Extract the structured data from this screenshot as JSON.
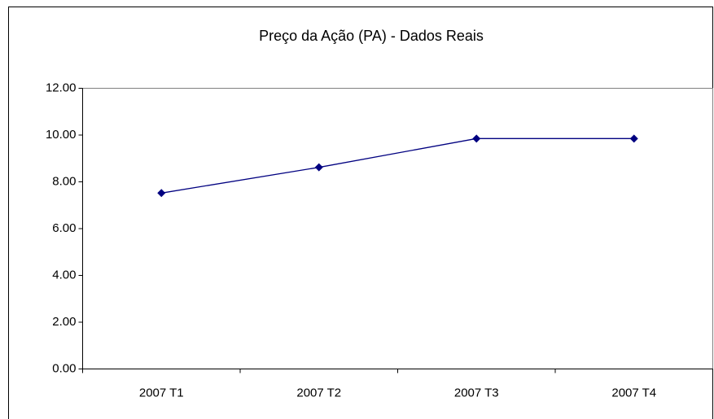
{
  "chart_data": {
    "type": "line",
    "title": "Preço da Ação (PA) - Dados Reais",
    "categories": [
      "2007 T1",
      "2007 T2",
      "2007 T3",
      "2007 T4"
    ],
    "series": [
      {
        "color": "#000080",
        "values": [
          7.52,
          8.62,
          9.85,
          9.85
        ]
      }
    ],
    "ylim": [
      0,
      12
    ],
    "yticks": [
      {
        "value": 0,
        "label": "0.00"
      },
      {
        "value": 2,
        "label": "2.00"
      },
      {
        "value": 4,
        "label": "4.00"
      },
      {
        "value": 6,
        "label": "6.00"
      },
      {
        "value": 8,
        "label": "8.00"
      },
      {
        "value": 10,
        "label": "10.00"
      },
      {
        "value": 12,
        "label": "12.00"
      }
    ],
    "grid": false
  }
}
